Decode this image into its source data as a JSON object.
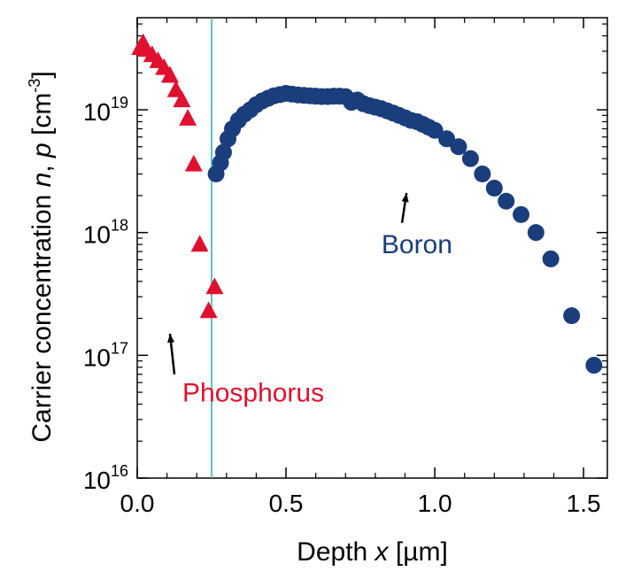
{
  "chart_data": {
    "type": "scatter",
    "xlabel": {
      "prefix": "Depth ",
      "var": "x",
      "unit": " [µm]"
    },
    "ylabel": {
      "prefix": "Carrier concentration ",
      "var1": "n",
      "sep": ", ",
      "var2": "p",
      "unit_pre": " [cm",
      "unit_exp": "-3",
      "unit_post": "]"
    },
    "xlim": [
      0,
      1.58
    ],
    "ylim_exp": [
      16,
      19.75
    ],
    "xticks": [
      {
        "value": 0.0,
        "label": "0.0"
      },
      {
        "value": 0.5,
        "label": "0.5"
      },
      {
        "value": 1.0,
        "label": "1.0"
      },
      {
        "value": 1.5,
        "label": "1.5"
      }
    ],
    "yticks": [
      {
        "exp": 16,
        "base": "10",
        "sup": "16"
      },
      {
        "exp": 17,
        "base": "10",
        "sup": "17"
      },
      {
        "exp": 18,
        "base": "10",
        "sup": "18"
      },
      {
        "exp": 19,
        "base": "10",
        "sup": "19"
      }
    ],
    "vline_x": 0.25,
    "colors": {
      "phosphorus": "#e0102f",
      "boron": "#1a3d7c",
      "vline": "#2ab0a8",
      "axis": "#000000"
    },
    "series": [
      {
        "name": "Phosphorus",
        "marker": "triangle",
        "x": [
          0.01,
          0.02,
          0.03,
          0.05,
          0.07,
          0.09,
          0.11,
          0.13,
          0.15,
          0.17,
          0.19,
          0.21,
          0.24,
          0.26
        ],
        "y": [
          3.2e+19,
          3.5e+19,
          3.1e+19,
          2.8e+19,
          2.5e+19,
          2.2e+19,
          1.9e+19,
          1.45e+19,
          1.2e+19,
          8.5e+18,
          3.6e+18,
          8e+17,
          2.3e+17,
          3.6e+17
        ]
      },
      {
        "name": "Boron",
        "marker": "circle",
        "x": [
          0.265,
          0.28,
          0.29,
          0.305,
          0.32,
          0.34,
          0.36,
          0.38,
          0.4,
          0.42,
          0.44,
          0.46,
          0.48,
          0.5,
          0.52,
          0.54,
          0.56,
          0.58,
          0.6,
          0.62,
          0.64,
          0.66,
          0.68,
          0.7,
          0.72,
          0.74,
          0.76,
          0.78,
          0.8,
          0.82,
          0.84,
          0.86,
          0.88,
          0.9,
          0.92,
          0.94,
          0.96,
          0.98,
          1.0,
          1.04,
          1.08,
          1.12,
          1.16,
          1.2,
          1.24,
          1.29,
          1.34,
          1.39,
          1.46,
          1.535
        ],
        "y": [
          3e+18,
          3.7e+18,
          4.5e+18,
          5.8e+18,
          7e+18,
          8.2e+18,
          9.2e+18,
          1e+19,
          1.1e+19,
          1.18e+19,
          1.24e+19,
          1.3e+19,
          1.33e+19,
          1.36e+19,
          1.34e+19,
          1.32e+19,
          1.31e+19,
          1.3e+19,
          1.29e+19,
          1.28e+19,
          1.28e+19,
          1.29e+19,
          1.29e+19,
          1.28e+19,
          1.15e+19,
          1.2e+19,
          1.12e+19,
          1.08e+19,
          1.05e+19,
          1.02e+19,
          9.8e+18,
          9.4e+18,
          9e+18,
          8.6e+18,
          8.2e+18,
          8e+18,
          7.6e+18,
          7.2e+18,
          6.8e+18,
          5.8e+18,
          5e+18,
          4e+18,
          3e+18,
          2.3e+18,
          1.8e+18,
          1.4e+18,
          1e+18,
          6.1e+17,
          2.1e+17,
          8.3e+16
        ]
      }
    ],
    "annotations": [
      {
        "text": "Boron",
        "series": "Boron",
        "arrow_to": {
          "x": 0.905,
          "y": 2.1e+18
        },
        "arrow_from": {
          "x": 0.89,
          "y": 1.2e+18
        },
        "text_at": {
          "x": 0.94,
          "y": 6.8e+17
        }
      },
      {
        "text": "Phosphorus",
        "series": "Phosphorus",
        "arrow_to": {
          "x": 0.11,
          "y": 1.5e+17
        },
        "arrow_from": {
          "x": 0.125,
          "y": 7e+16
        },
        "text_at": {
          "x": 0.39,
          "y": 4.2e+16
        }
      }
    ]
  }
}
